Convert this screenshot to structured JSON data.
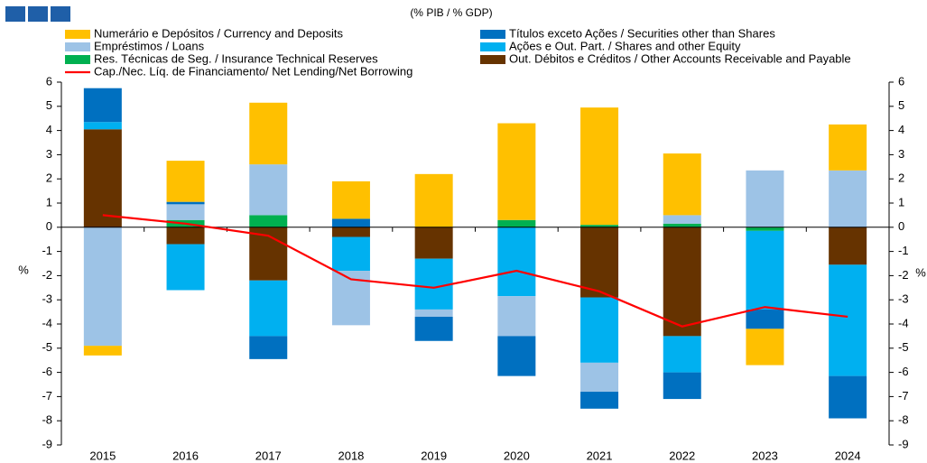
{
  "chart_data": {
    "type": "bar",
    "subtitle": "(% PIB / % GDP)",
    "ylabel": "%",
    "y2label": "%",
    "categories": [
      "2015",
      "2016",
      "2017",
      "2018",
      "2019",
      "2020",
      "2021",
      "2022",
      "2023",
      "2024"
    ],
    "ylim": [
      -9,
      6
    ],
    "yticks": [
      -9,
      -8,
      -7,
      -6,
      -5,
      -4,
      -3,
      -2,
      -1,
      0,
      1,
      2,
      3,
      4,
      5,
      6
    ],
    "y2lim": [
      -9,
      6
    ],
    "y2ticks": [
      -9,
      -8,
      -7,
      -6,
      -5,
      -4,
      -3,
      -2,
      -1,
      0,
      1,
      2,
      3,
      4,
      5,
      6
    ],
    "stacked": true,
    "series": [
      {
        "name": "Numerário e Depósitos / Currency and Deposits",
        "color": "#ffc000",
        "values": [
          -0.4,
          1.7,
          2.55,
          1.55,
          2.2,
          4.0,
          4.85,
          2.55,
          -1.5,
          1.9
        ]
      },
      {
        "name": "Títulos exceto Ações / Securities other than Shares",
        "color": "#0070c0",
        "values": [
          1.4,
          0.1,
          -0.95,
          0.35,
          -1.0,
          -1.65,
          -0.7,
          -1.1,
          -0.8,
          -1.75
        ]
      },
      {
        "name": "Empréstimos / Loans",
        "color": "#9dc3e6",
        "values": [
          -4.9,
          0.65,
          2.1,
          -2.25,
          -0.3,
          -1.65,
          -1.2,
          0.35,
          2.35,
          2.35
        ]
      },
      {
        "name": "Ações e Out. Part. / Shares and other Equity",
        "color": "#00b0f0",
        "values": [
          0.3,
          -1.9,
          -2.3,
          -1.4,
          -2.1,
          -2.85,
          -2.7,
          -1.5,
          -3.25,
          -4.6
        ]
      },
      {
        "name": "Res. Técnicas de Seg. / Insurance Technical Reserves",
        "color": "#00b050",
        "values": [
          0,
          0.3,
          0.5,
          0,
          0,
          0.3,
          0.1,
          0.15,
          -0.15,
          0
        ]
      },
      {
        "name": "Out. Débitos e Créditos / Other Accounts Receivable and Payable",
        "color": "#663300",
        "values": [
          4.05,
          -0.7,
          -2.2,
          -0.4,
          -1.3,
          0,
          -2.9,
          -4.5,
          0,
          -1.55
        ]
      },
      {
        "name": "Cap./Nec. Líq. de Financiamento/ Net Lending/Net Borrowing",
        "color": "#ff0000",
        "type": "line",
        "values": [
          0.5,
          0.15,
          -0.35,
          -2.15,
          -2.5,
          -1.8,
          -2.65,
          -4.1,
          -3.3,
          -3.7
        ]
      }
    ]
  }
}
